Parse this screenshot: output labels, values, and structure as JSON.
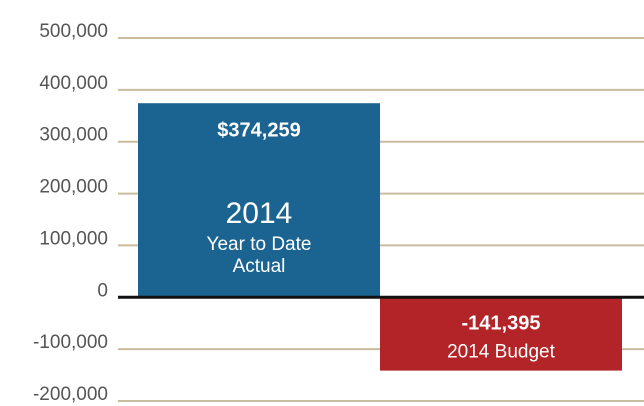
{
  "chart_data": {
    "type": "bar",
    "categories": [
      [
        "2014",
        "Year to Date",
        "Actual"
      ],
      [
        "2014 Budget"
      ]
    ],
    "values": [
      374259,
      -141395
    ],
    "value_labels": [
      "$374,259",
      "-141,395"
    ],
    "colors": [
      "#1b6491",
      "#b22427"
    ],
    "ylim": [
      -200000,
      500000
    ],
    "yticks": [
      {
        "value": -200000,
        "label": "-200,000"
      },
      {
        "value": -100000,
        "label": "-100,000"
      },
      0,
      {
        "value": 100000,
        "label": "100,000"
      },
      {
        "value": 200000,
        "label": "200,000"
      },
      {
        "value": 300000,
        "label": "300,000"
      },
      {
        "value": 400000,
        "label": "400,000"
      },
      {
        "value": 500000,
        "label": "500,000"
      }
    ],
    "grid": true
  }
}
